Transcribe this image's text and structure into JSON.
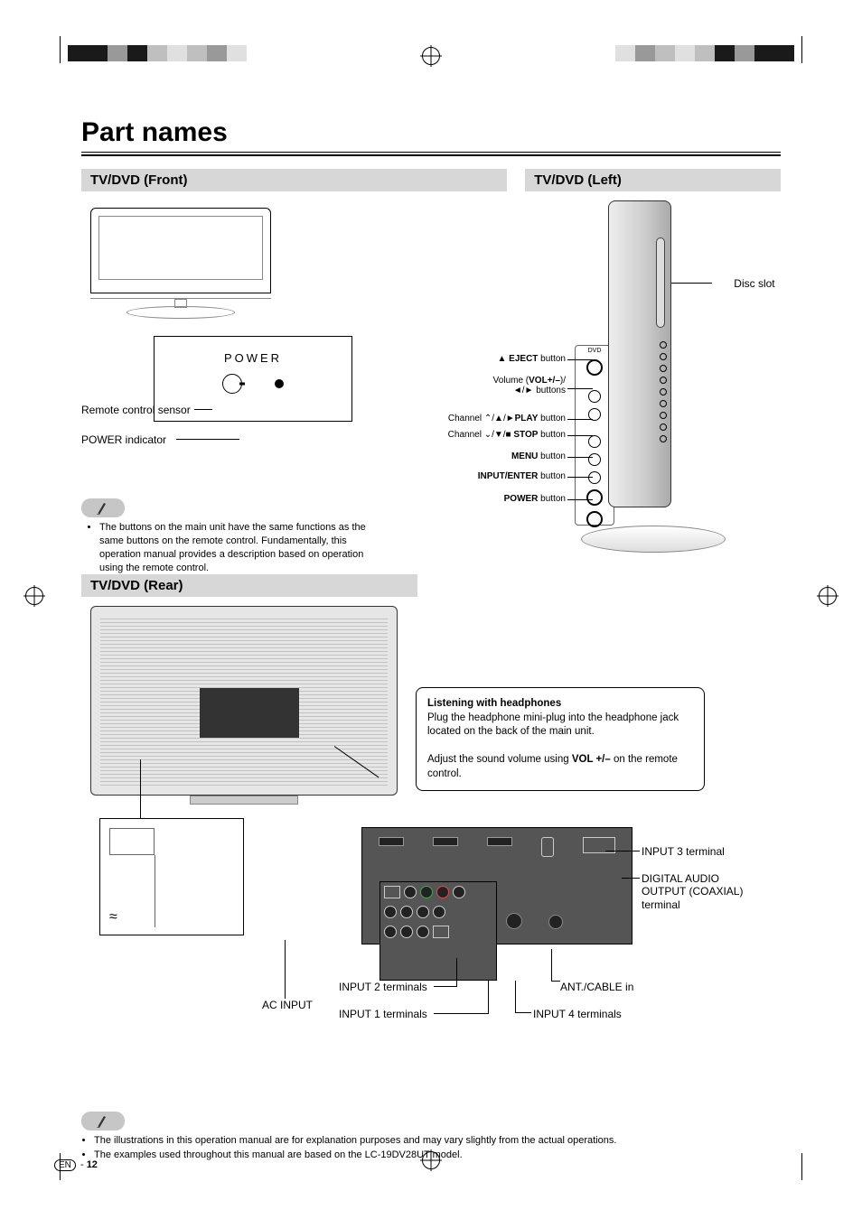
{
  "registration_colors_left": [
    "#1a1a1a",
    "#1a1a1a",
    "#999999",
    "#1a1a1a",
    "#bfbfbf",
    "#e0e0e0",
    "#bfbfbf",
    "#999999",
    "#e0e0e0"
  ],
  "registration_colors_right": [
    "#1a1a1a",
    "#1a1a1a",
    "#999999",
    "#1a1a1a",
    "#bfbfbf",
    "#e0e0e0",
    "#bfbfbf",
    "#999999",
    "#e0e0e0"
  ],
  "page_title": "Part names",
  "sections": {
    "front": "TV/DVD (Front)",
    "left": "TV/DVD (Left)",
    "rear": "TV/DVD (Rear)"
  },
  "front": {
    "power_label": "POWER",
    "remote_sensor": "Remote control sensor",
    "power_indicator": "POWER indicator",
    "buttons": {
      "eject": {
        "pre": "▲ ",
        "bold": "EJECT",
        "post": " button"
      },
      "volume": {
        "pre": "Volume (",
        "bold": "VOL+/–",
        "post": ")/"
      },
      "volume2": "◄/► buttons",
      "ch_up": {
        "pre": "Channel ⌃/▲/►",
        "bold": "PLAY",
        "post": " button"
      },
      "ch_down": {
        "pre": "Channel ⌄/▼/■ ",
        "bold": "STOP",
        "post": " button"
      },
      "menu": {
        "pre": "",
        "bold": "MENU",
        "post": " button"
      },
      "input": {
        "pre": "",
        "bold": "INPUT/ENTER",
        "post": " button"
      },
      "power": {
        "pre": "",
        "bold": "POWER",
        "post": " button"
      }
    },
    "note": "The buttons on the main unit have the same functions as the same buttons on the remote control. Fundamentally, this operation manual provides a description based on operation using the remote control."
  },
  "left": {
    "disc_slot": "Disc slot"
  },
  "rear": {
    "headphone": {
      "title": "Listening with headphones",
      "line1": "Plug the headphone mini-plug into the headphone jack located on the back of the main unit.",
      "line2_pre": "Adjust the sound volume using ",
      "line2_bold": "VOL +/–",
      "line2_post": " on the remote control."
    },
    "labels": {
      "input3": "INPUT 3 terminal",
      "digital_audio": "DIGITAL AUDIO OUTPUT (COAXIAL) terminal",
      "ant": "ANT./CABLE in",
      "input4": "INPUT 4 terminals",
      "input2": "INPUT 2 terminals",
      "input1": "INPUT 1 terminals",
      "ac": "AC INPUT"
    }
  },
  "footer": {
    "note1": "The illustrations in this operation manual are for explanation purposes and may vary slightly from the actual operations.",
    "note2": "The examples used throughout this manual are based on the LC-19DV28UT model.",
    "lang": "EN",
    "sep": " - ",
    "page": "12"
  },
  "colors": {
    "section_bar": "#d7d7d7",
    "note_pill": "#c6c6c6",
    "rear_body": "#e6e6e6",
    "dark_panel": "#555555"
  }
}
